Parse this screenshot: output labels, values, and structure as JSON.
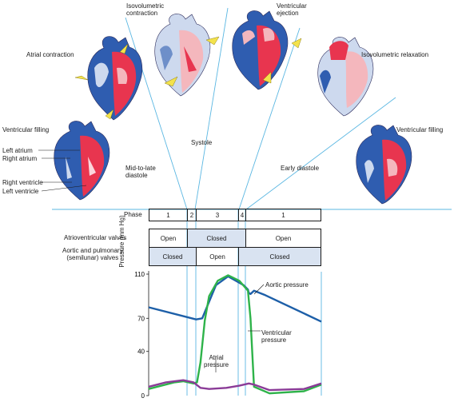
{
  "colors": {
    "line": "#5bb7e2",
    "aortic": "#1d5fa8",
    "ventricular": "#2eb34a",
    "atrial": "#8a3b97",
    "shade": "#d9e3f1",
    "heart_red": "#e8354f",
    "heart_blue": "#2f5db0",
    "heart_pink": "#f4b7bd",
    "arrow": "#f3e24c"
  },
  "stage_labels": {
    "atrial_contraction": "Atrial contraction",
    "iso_contraction": "Isovolumetric\ncontraction",
    "ventricular_ejection": "Ventricular\nejection",
    "iso_relaxation": "Isovolumetric relaxation",
    "ventricular_filling_left": "Ventricular filling",
    "ventricular_filling_right": "Ventricular filling"
  },
  "anatomy_labels": {
    "left_atrium": "Left atrium",
    "right_atrium": "Right atrium",
    "right_ventricle": "Right ventricle",
    "left_ventricle": "Left ventricle"
  },
  "period_labels": {
    "systole": "Systole",
    "mid_late_diastole": "Mid-to-late\ndiastole",
    "early_diastole": "Early diastole"
  },
  "phase_row": {
    "header": "Phase",
    "cells": [
      "1",
      "2",
      "3",
      "4",
      "1"
    ]
  },
  "valves": {
    "av_label": "Atrioventricular valves",
    "av_states": [
      "Open",
      "Closed",
      "Open"
    ],
    "semilunar_label": "Aortic and pulmonary\n(semilunar) valves",
    "semilunar_states": [
      "Closed",
      "Open",
      "Closed"
    ]
  },
  "chart_data": {
    "type": "line",
    "ylabel": "Pressure (mm Hg)",
    "yticks": [
      0,
      40,
      70,
      110
    ],
    "ylim": [
      0,
      110
    ],
    "series": [
      {
        "name": "Aortic pressure",
        "color": "#1d5fa8",
        "points": [
          [
            0,
            80
          ],
          [
            50,
            70
          ],
          [
            55,
            69
          ],
          [
            62,
            70
          ],
          [
            78,
            100
          ],
          [
            92,
            108
          ],
          [
            110,
            100
          ],
          [
            115,
            96
          ],
          [
            116,
            93
          ],
          [
            118,
            92
          ],
          [
            122,
            95
          ],
          [
            135,
            91
          ],
          [
            200,
            67
          ]
        ]
      },
      {
        "name": "Ventricular\npressure",
        "color": "#2eb34a",
        "points": [
          [
            0,
            6
          ],
          [
            30,
            12
          ],
          [
            40,
            13
          ],
          [
            52,
            11
          ],
          [
            56,
            12
          ],
          [
            60,
            30
          ],
          [
            65,
            68
          ],
          [
            70,
            90
          ],
          [
            80,
            104
          ],
          [
            92,
            109
          ],
          [
            105,
            104
          ],
          [
            115,
            95
          ],
          [
            118,
            70
          ],
          [
            122,
            8
          ],
          [
            140,
            2
          ],
          [
            180,
            4
          ],
          [
            200,
            10
          ]
        ]
      },
      {
        "name": "Atrial\npressure",
        "color": "#8a3b97",
        "points": [
          [
            0,
            8
          ],
          [
            20,
            12
          ],
          [
            40,
            14
          ],
          [
            52,
            12
          ],
          [
            60,
            7
          ],
          [
            70,
            6
          ],
          [
            90,
            7
          ],
          [
            105,
            9
          ],
          [
            116,
            11
          ],
          [
            122,
            10
          ],
          [
            140,
            5
          ],
          [
            180,
            6
          ],
          [
            200,
            11
          ]
        ]
      }
    ]
  }
}
